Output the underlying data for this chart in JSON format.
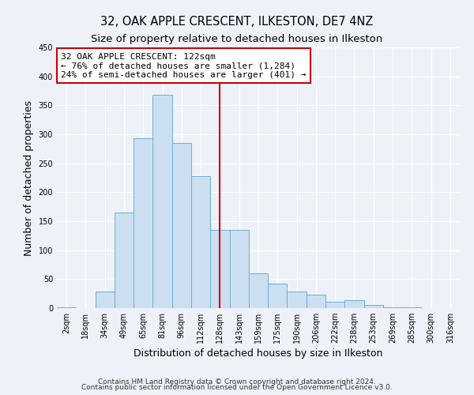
{
  "title": "32, OAK APPLE CRESCENT, ILKESTON, DE7 4NZ",
  "subtitle": "Size of property relative to detached houses in Ilkeston",
  "xlabel": "Distribution of detached houses by size in Ilkeston",
  "ylabel": "Number of detached properties",
  "bar_labels": [
    "2sqm",
    "18sqm",
    "34sqm",
    "49sqm",
    "65sqm",
    "81sqm",
    "96sqm",
    "112sqm",
    "128sqm",
    "143sqm",
    "159sqm",
    "175sqm",
    "190sqm",
    "206sqm",
    "222sqm",
    "238sqm",
    "253sqm",
    "269sqm",
    "285sqm",
    "300sqm",
    "316sqm"
  ],
  "bar_heights": [
    2,
    0,
    28,
    165,
    293,
    368,
    285,
    228,
    135,
    135,
    60,
    42,
    28,
    23,
    11,
    13,
    5,
    2,
    2,
    0,
    0
  ],
  "bar_color": "#ccdff0",
  "bar_edge_color": "#6aaed6",
  "annotation_label": "32 OAK APPLE CRESCENT: 122sqm",
  "annotation_line1": "← 76% of detached houses are smaller (1,284)",
  "annotation_line2": "24% of semi-detached houses are larger (401) →",
  "ylim": [
    0,
    450
  ],
  "yticks": [
    0,
    50,
    100,
    150,
    200,
    250,
    300,
    350,
    400,
    450
  ],
  "footer_line1": "Contains HM Land Registry data © Crown copyright and database right 2024.",
  "footer_line2": "Contains public sector information licensed under the Open Government Licence v3.0.",
  "bg_color": "#eef2f8",
  "grid_color": "#ffffff",
  "title_fontsize": 10.5,
  "subtitle_fontsize": 9.5,
  "axis_label_fontsize": 9,
  "tick_fontsize": 7,
  "footer_fontsize": 6.5,
  "annot_fontsize": 8
}
